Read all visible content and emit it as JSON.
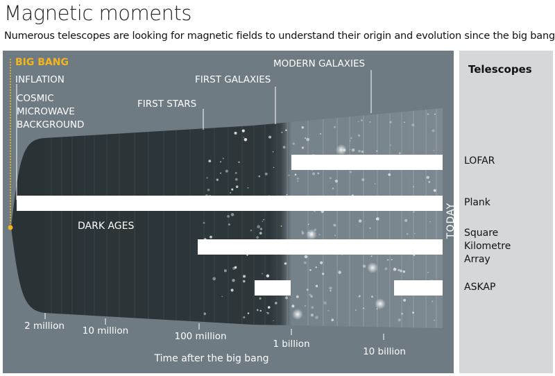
{
  "title": "Magnetic moments",
  "subtitle": "Numerous telescopes are looking for magnetic fields to understand their origin and evolution since the big bang",
  "colors": {
    "panel": "#6f7b82",
    "cone_dark": "#2c3438",
    "cone_light": "#7b878e",
    "big_bang": "#f2b51c",
    "sidebar": "#d4d8db",
    "bar": "#ffffff"
  },
  "epochs": {
    "big_bang": "BIG BANG",
    "inflation": "INFLATION",
    "cmb": [
      "COSMIC",
      "MICROWAVE",
      "BACKGROUND"
    ],
    "first_stars": "FIRST STARS",
    "first_galaxies": "FIRST GALAXIES",
    "modern_galaxies": "MODERN GALAXIES",
    "dark_ages": "DARK AGES",
    "today": "TODAY"
  },
  "axis": {
    "label": "Time after the big bang",
    "ticks": [
      "2 million",
      "10 million",
      "100 million",
      "1 billion",
      "10 billion"
    ]
  },
  "sidebar": {
    "heading": "Telescopes"
  },
  "telescopes": [
    {
      "name_lines": [
        "LOFAR"
      ],
      "bars": [
        [
          "1 billion",
          "today"
        ]
      ]
    },
    {
      "name_lines": [
        "Plank"
      ],
      "bars": [
        [
          "big bang",
          "today"
        ]
      ]
    },
    {
      "name_lines": [
        "Square",
        "Kilometre",
        "Array"
      ],
      "bars": [
        [
          "100 million",
          "today"
        ]
      ]
    },
    {
      "name_lines": [
        "ASKAP"
      ],
      "bars": [
        [
          "~500 million",
          "1 billion"
        ],
        [
          "~10 billion",
          "today"
        ]
      ]
    }
  ]
}
